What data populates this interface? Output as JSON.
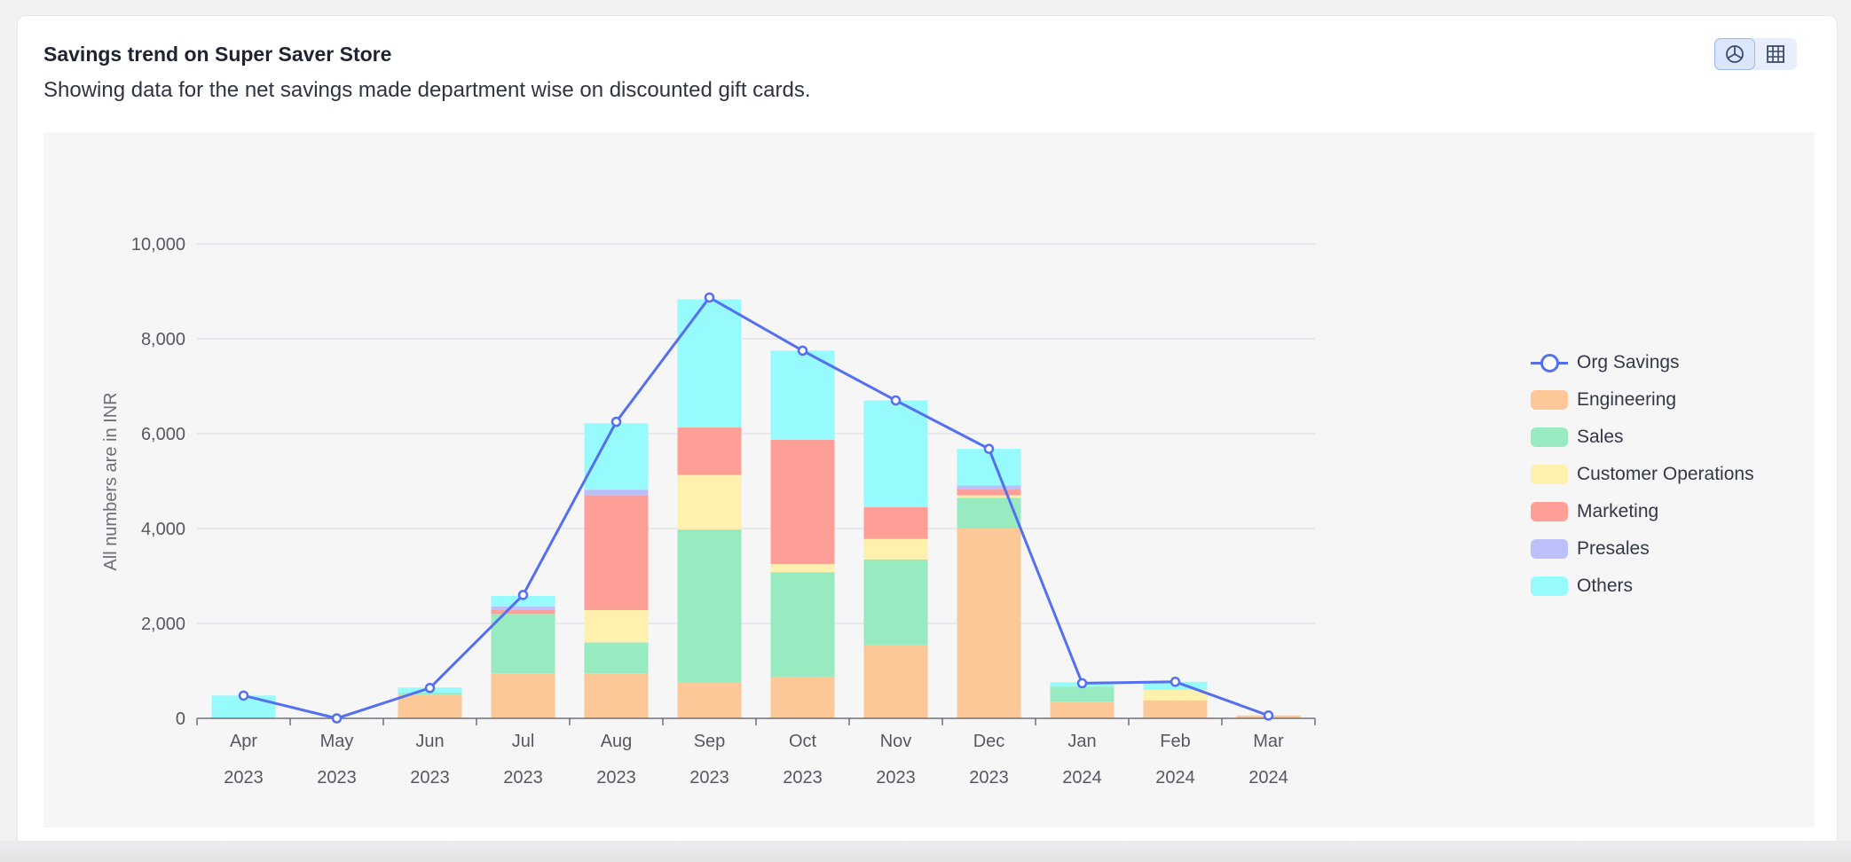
{
  "card": {
    "title": "Savings trend on Super Saver Store",
    "subtitle": "Showing data for the net savings made department wise on discounted gift cards.",
    "view_toggle": {
      "chart_icon": "pie-chart-icon",
      "table_icon": "table-grid-icon",
      "active": "chart"
    }
  },
  "colors": {
    "line": "#5470f0",
    "Engineering": "#fdc897",
    "Sales": "#98ebc0",
    "Customer Operations": "#fdf1ad",
    "Marketing": "#fd9f97",
    "Presales": "#bbc0fb",
    "Others": "#97fafd"
  },
  "chart_data": {
    "type": "bar",
    "stacked": true,
    "categories": [
      "Apr",
      "May",
      "Jun",
      "Jul",
      "Aug",
      "Sep",
      "Oct",
      "Nov",
      "Dec",
      "Jan",
      "Feb",
      "Mar"
    ],
    "category_years": [
      "2023",
      "2023",
      "2023",
      "2023",
      "2023",
      "2023",
      "2023",
      "2023",
      "2023",
      "2024",
      "2024",
      "2024"
    ],
    "ylabel": "All numbers are in INR",
    "ylim": [
      0,
      10000
    ],
    "yticks": [
      "0",
      "2,000",
      "4,000",
      "6,000",
      "8,000",
      "10,000"
    ],
    "ytick_values": [
      0,
      2000,
      4000,
      6000,
      8000,
      10000
    ],
    "grid": true,
    "legend_position": "right",
    "series": [
      {
        "name": "Engineering",
        "values": [
          0,
          0,
          500,
          950,
          950,
          750,
          880,
          1550,
          4000,
          350,
          380,
          60
        ]
      },
      {
        "name": "Sales",
        "values": [
          0,
          0,
          40,
          1250,
          650,
          3230,
          2200,
          1800,
          650,
          320,
          0,
          0
        ]
      },
      {
        "name": "Customer Operations",
        "values": [
          0,
          0,
          0,
          0,
          680,
          1150,
          170,
          430,
          50,
          0,
          220,
          0
        ]
      },
      {
        "name": "Marketing",
        "values": [
          0,
          0,
          0,
          80,
          2420,
          1000,
          2620,
          670,
          130,
          0,
          0,
          0
        ]
      },
      {
        "name": "Presales",
        "values": [
          0,
          0,
          0,
          80,
          120,
          0,
          0,
          0,
          80,
          0,
          0,
          0
        ]
      },
      {
        "name": "Others",
        "values": [
          480,
          0,
          110,
          220,
          1400,
          2700,
          1880,
          2250,
          770,
          90,
          170,
          0
        ]
      }
    ],
    "line_series": {
      "name": "Org Savings",
      "values": [
        480,
        0,
        640,
        2600,
        6250,
        8870,
        7750,
        6700,
        5680,
        740,
        770,
        60
      ]
    },
    "legend": [
      "Org Savings",
      "Engineering",
      "Sales",
      "Customer Operations",
      "Marketing",
      "Presales",
      "Others"
    ]
  }
}
